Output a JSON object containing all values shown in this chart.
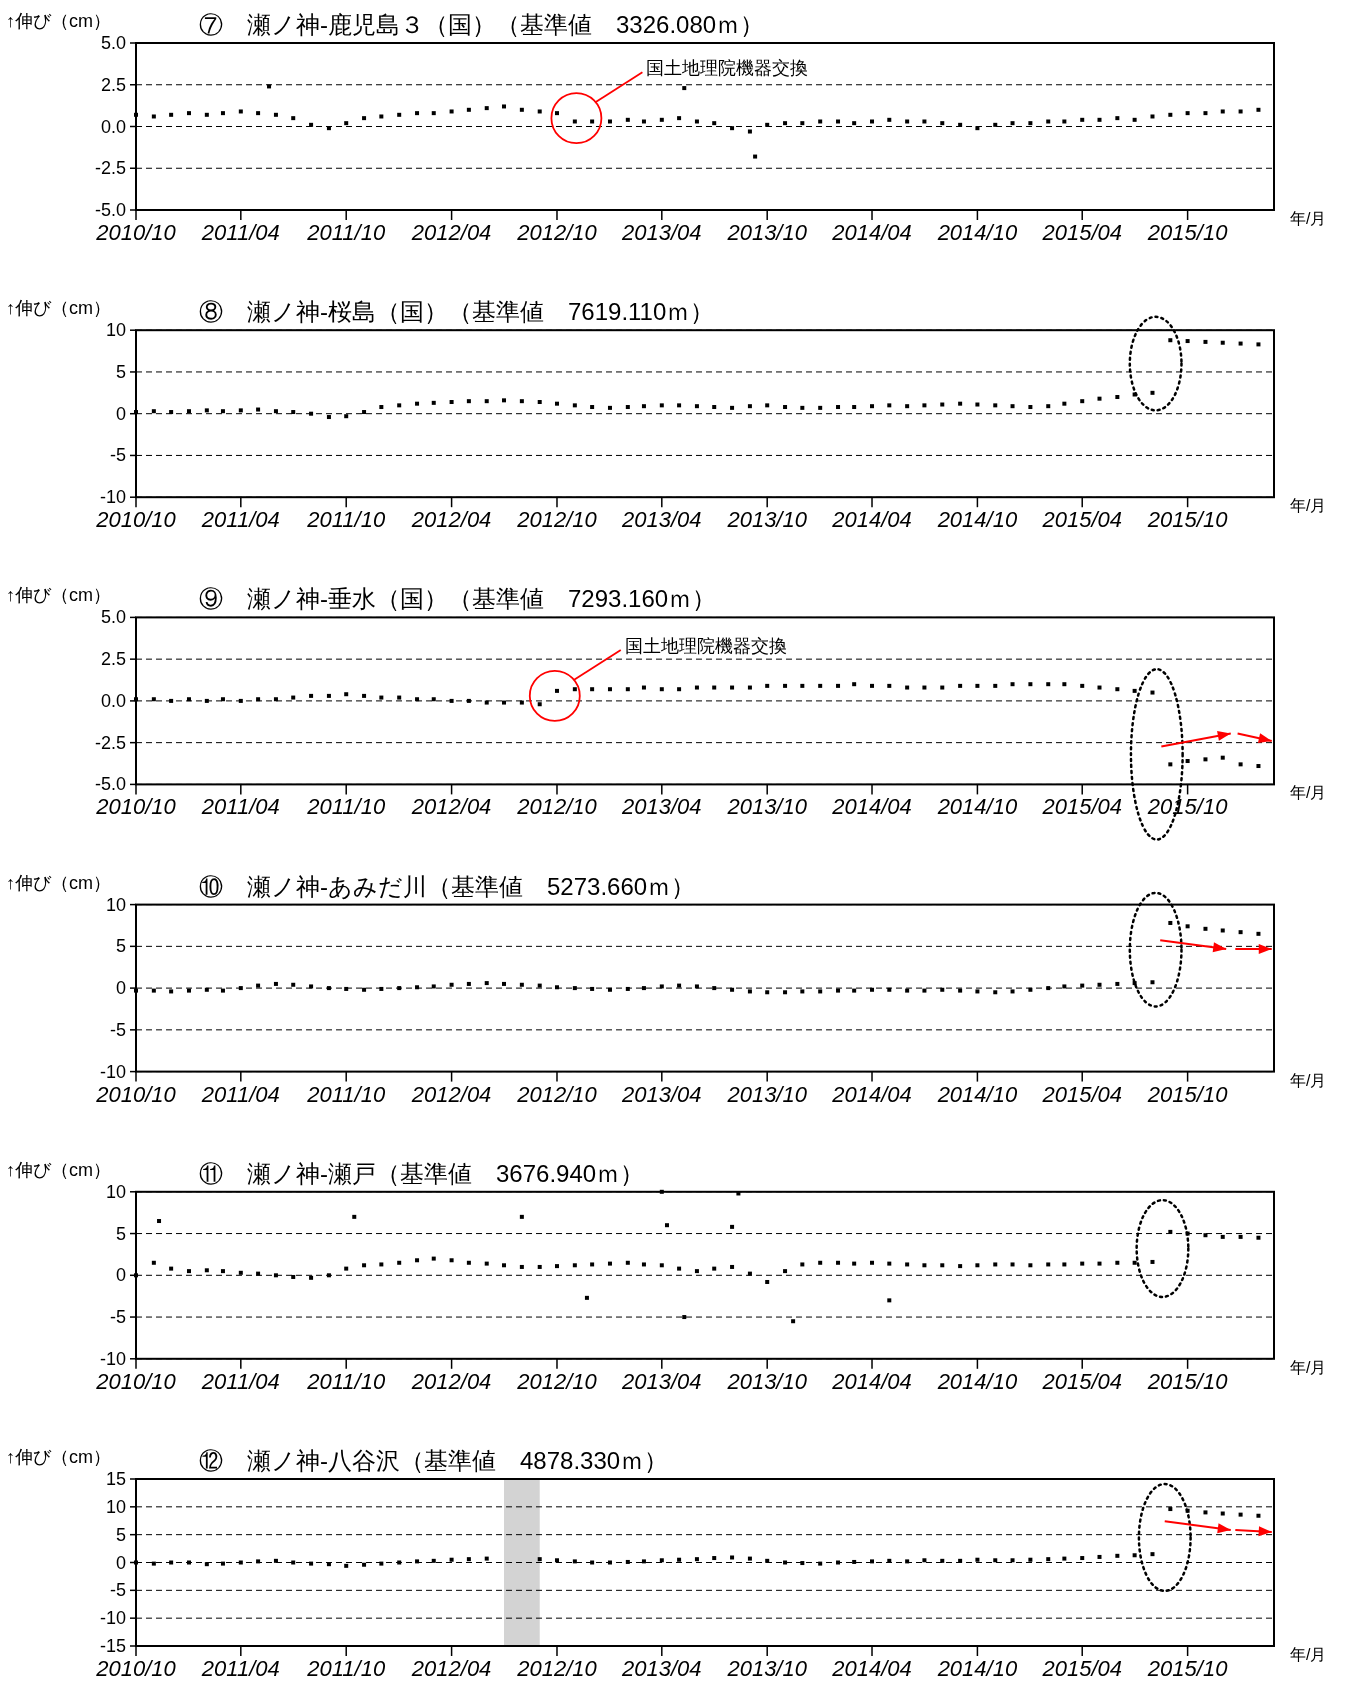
{
  "chart_data": [
    {
      "type": "scatter",
      "title": "⑦　瀬ノ神-鹿児島３（国）（基準値　3326.080ｍ）",
      "ylabel": "↑伸び（cm）",
      "xlabel": "年/月",
      "marker": "square",
      "grid": "y",
      "xlim": [
        "2010-10-01",
        "2016-02-28"
      ],
      "xticks": [
        {
          "value": "2010-10-01",
          "label": "2010/10"
        },
        {
          "value": "2011-04-01",
          "label": "2011/04"
        },
        {
          "value": "2011-10-01",
          "label": "2011/10"
        },
        {
          "value": "2012-04-01",
          "label": "2012/04"
        },
        {
          "value": "2012-10-01",
          "label": "2012/10"
        },
        {
          "value": "2013-04-01",
          "label": "2013/04"
        },
        {
          "value": "2013-10-01",
          "label": "2013/10"
        },
        {
          "value": "2014-04-01",
          "label": "2014/04"
        },
        {
          "value": "2014-10-01",
          "label": "2014/10"
        },
        {
          "value": "2015-04-01",
          "label": "2015/04"
        },
        {
          "value": "2015-10-01",
          "label": "2015/10"
        }
      ],
      "ylim": [
        -5,
        5
      ],
      "yticks": [
        {
          "value": 5,
          "label": "5.0"
        },
        {
          "value": 2.5,
          "label": "2.5"
        },
        {
          "value": 0,
          "label": "0.0"
        },
        {
          "value": -2.5,
          "label": "-2.5"
        },
        {
          "value": -5,
          "label": "-5.0"
        }
      ],
      "annotations": [
        "国土地理院機器交換"
      ],
      "series": [
        {
          "color": "#000000",
          "x": [
            "2010-10",
            "2010-11",
            "2010-12",
            "2011-01",
            "2011-02",
            "2011-03",
            "2011-04",
            "2011-05",
            "2011-06",
            "2011-07",
            "2011-08",
            "2011-09",
            "2011-10",
            "2011-11",
            "2011-12",
            "2012-01",
            "2012-02",
            "2012-03",
            "2012-04",
            "2012-05",
            "2012-06",
            "2012-07",
            "2012-08",
            "2012-09",
            "2012-10",
            "2012-11",
            "2012-12",
            "2013-01",
            "2013-02",
            "2013-03",
            "2013-04",
            "2013-05",
            "2013-06",
            "2013-07",
            "2013-08",
            "2013-09",
            "2013-10",
            "2013-11",
            "2013-12",
            "2014-01",
            "2014-02",
            "2014-03",
            "2014-04",
            "2014-05",
            "2014-06",
            "2014-07",
            "2014-08",
            "2014-09",
            "2014-10",
            "2014-11",
            "2014-12",
            "2015-01",
            "2015-02",
            "2015-03",
            "2015-04",
            "2015-05",
            "2015-06",
            "2015-07",
            "2015-08",
            "2015-09",
            "2015-10",
            "2015-11",
            "2015-12",
            "2016-01",
            "2016-02",
            "2011-05-20",
            "2013-05-10",
            "2013-09-10"
          ],
          "values": [
            0.7,
            0.6,
            0.7,
            0.8,
            0.7,
            0.8,
            0.9,
            0.8,
            0.7,
            0.5,
            0.1,
            -0.1,
            0.2,
            0.5,
            0.6,
            0.7,
            0.8,
            0.8,
            0.9,
            1.0,
            1.1,
            1.2,
            1.0,
            0.9,
            0.8,
            0.3,
            0.3,
            0.3,
            0.4,
            0.3,
            0.4,
            0.5,
            0.3,
            0.2,
            -0.1,
            -0.3,
            0.1,
            0.2,
            0.2,
            0.3,
            0.3,
            0.2,
            0.3,
            0.4,
            0.3,
            0.3,
            0.2,
            0.1,
            -0.1,
            0.1,
            0.2,
            0.2,
            0.3,
            0.3,
            0.4,
            0.4,
            0.5,
            0.4,
            0.6,
            0.7,
            0.8,
            0.8,
            0.9,
            0.9,
            1.0,
            2.4,
            2.3,
            -1.8
          ]
        }
      ]
    },
    {
      "type": "scatter",
      "title": "⑧　瀬ノ神-桜島（国）（基準値　7619.110ｍ）",
      "ylabel": "↑伸び（cm）",
      "xlabel": "年/月",
      "marker": "square",
      "grid": "y",
      "xlim": [
        "2010-10-01",
        "2016-02-28"
      ],
      "xticks": [
        {
          "value": "2010-10-01",
          "label": "2010/10"
        },
        {
          "value": "2011-04-01",
          "label": "2011/04"
        },
        {
          "value": "2011-10-01",
          "label": "2011/10"
        },
        {
          "value": "2012-04-01",
          "label": "2012/04"
        },
        {
          "value": "2012-10-01",
          "label": "2012/10"
        },
        {
          "value": "2013-04-01",
          "label": "2013/04"
        },
        {
          "value": "2013-10-01",
          "label": "2013/10"
        },
        {
          "value": "2014-04-01",
          "label": "2014/04"
        },
        {
          "value": "2014-10-01",
          "label": "2014/10"
        },
        {
          "value": "2015-04-01",
          "label": "2015/04"
        },
        {
          "value": "2015-10-01",
          "label": "2015/10"
        }
      ],
      "ylim": [
        -10,
        10
      ],
      "yticks": [
        10,
        5,
        0,
        -5,
        -10
      ],
      "series": [
        {
          "color": "#000000",
          "x": [
            "2010-10",
            "2010-11",
            "2010-12",
            "2011-01",
            "2011-02",
            "2011-03",
            "2011-04",
            "2011-05",
            "2011-06",
            "2011-07",
            "2011-08",
            "2011-09",
            "2011-10",
            "2011-11",
            "2011-12",
            "2012-01",
            "2012-02",
            "2012-03",
            "2012-04",
            "2012-05",
            "2012-06",
            "2012-07",
            "2012-08",
            "2012-09",
            "2012-10",
            "2012-11",
            "2012-12",
            "2013-01",
            "2013-02",
            "2013-03",
            "2013-04",
            "2013-05",
            "2013-06",
            "2013-07",
            "2013-08",
            "2013-09",
            "2013-10",
            "2013-11",
            "2013-12",
            "2014-01",
            "2014-02",
            "2014-03",
            "2014-04",
            "2014-05",
            "2014-06",
            "2014-07",
            "2014-08",
            "2014-09",
            "2014-10",
            "2014-11",
            "2014-12",
            "2015-01",
            "2015-02",
            "2015-03",
            "2015-04",
            "2015-05",
            "2015-06",
            "2015-07",
            "2015-08",
            "2015-09",
            "2015-10",
            "2015-11",
            "2015-12",
            "2016-01",
            "2016-02"
          ],
          "values": [
            0.2,
            0.3,
            0.2,
            0.3,
            0.4,
            0.3,
            0.4,
            0.5,
            0.3,
            0.2,
            0.0,
            -0.4,
            -0.3,
            0.2,
            0.8,
            1.0,
            1.2,
            1.3,
            1.4,
            1.5,
            1.5,
            1.6,
            1.5,
            1.4,
            1.2,
            1.0,
            0.8,
            0.7,
            0.8,
            0.9,
            1.0,
            1.0,
            0.9,
            0.8,
            0.7,
            0.9,
            1.0,
            0.8,
            0.7,
            0.7,
            0.8,
            0.8,
            0.9,
            1.0,
            0.9,
            1.0,
            1.1,
            1.2,
            1.1,
            1.0,
            0.9,
            0.8,
            0.9,
            1.2,
            1.5,
            1.8,
            2.0,
            2.3,
            2.5,
            8.8,
            8.7,
            8.6,
            8.5,
            8.4,
            8.3
          ]
        }
      ]
    },
    {
      "type": "scatter",
      "title": "⑨　瀬ノ神-垂水（国）（基準値　7293.160ｍ）",
      "ylabel": "↑伸び（cm）",
      "xlabel": "年/月",
      "marker": "square",
      "grid": "y",
      "xlim": [
        "2010-10-01",
        "2016-02-28"
      ],
      "xticks": [
        {
          "value": "2010-10-01",
          "label": "2010/10"
        },
        {
          "value": "2011-04-01",
          "label": "2011/04"
        },
        {
          "value": "2011-10-01",
          "label": "2011/10"
        },
        {
          "value": "2012-04-01",
          "label": "2012/04"
        },
        {
          "value": "2012-10-01",
          "label": "2012/10"
        },
        {
          "value": "2013-04-01",
          "label": "2013/04"
        },
        {
          "value": "2013-10-01",
          "label": "2013/10"
        },
        {
          "value": "2014-04-01",
          "label": "2014/04"
        },
        {
          "value": "2014-10-01",
          "label": "2014/10"
        },
        {
          "value": "2015-04-01",
          "label": "2015/04"
        },
        {
          "value": "2015-10-01",
          "label": "2015/10"
        }
      ],
      "ylim": [
        -5,
        5
      ],
      "yticks": [
        {
          "value": 5,
          "label": "5.0"
        },
        {
          "value": 2.5,
          "label": "2.5"
        },
        {
          "value": 0,
          "label": "0.0"
        },
        {
          "value": -2.5,
          "label": "-2.5"
        },
        {
          "value": -5,
          "label": "-5.0"
        }
      ],
      "annotations": [
        "国土地理院機器交換"
      ],
      "series": [
        {
          "color": "#000000",
          "x": [
            "2010-10",
            "2010-11",
            "2010-12",
            "2011-01",
            "2011-02",
            "2011-03",
            "2011-04",
            "2011-05",
            "2011-06",
            "2011-07",
            "2011-08",
            "2011-09",
            "2011-10",
            "2011-11",
            "2011-12",
            "2012-01",
            "2012-02",
            "2012-03",
            "2012-04",
            "2012-05",
            "2012-06",
            "2012-07",
            "2012-08",
            "2012-09",
            "2012-10",
            "2012-11",
            "2012-12",
            "2013-01",
            "2013-02",
            "2013-03",
            "2013-04",
            "2013-05",
            "2013-06",
            "2013-07",
            "2013-08",
            "2013-09",
            "2013-10",
            "2013-11",
            "2013-12",
            "2014-01",
            "2014-02",
            "2014-03",
            "2014-04",
            "2014-05",
            "2014-06",
            "2014-07",
            "2014-08",
            "2014-09",
            "2014-10",
            "2014-11",
            "2014-12",
            "2015-01",
            "2015-02",
            "2015-03",
            "2015-04",
            "2015-05",
            "2015-06",
            "2015-07",
            "2015-08",
            "2015-09",
            "2015-10",
            "2015-11",
            "2015-12",
            "2016-01",
            "2016-02"
          ],
          "values": [
            0.1,
            0.1,
            0.0,
            0.1,
            0.0,
            0.1,
            0.0,
            0.1,
            0.1,
            0.2,
            0.3,
            0.3,
            0.4,
            0.3,
            0.2,
            0.2,
            0.1,
            0.1,
            0.0,
            0.0,
            -0.1,
            -0.1,
            -0.1,
            -0.2,
            0.6,
            0.7,
            0.7,
            0.7,
            0.7,
            0.8,
            0.7,
            0.7,
            0.8,
            0.8,
            0.8,
            0.8,
            0.9,
            0.9,
            0.9,
            0.9,
            0.9,
            1.0,
            0.9,
            0.9,
            0.8,
            0.8,
            0.8,
            0.9,
            0.9,
            0.9,
            1.0,
            1.0,
            1.0,
            1.0,
            0.9,
            0.8,
            0.7,
            0.6,
            0.5,
            -3.8,
            -3.6,
            -3.5,
            -3.4,
            -3.8,
            -3.9
          ]
        }
      ]
    },
    {
      "type": "scatter",
      "title": "⑩　瀬ノ神-あみだ川（基準値　5273.660ｍ）",
      "ylabel": "↑伸び（cm）",
      "xlabel": "年/月",
      "marker": "square",
      "grid": "y",
      "xlim": [
        "2010-10-01",
        "2016-02-28"
      ],
      "xticks": [
        {
          "value": "2010-10-01",
          "label": "2010/10"
        },
        {
          "value": "2011-04-01",
          "label": "2011/04"
        },
        {
          "value": "2011-10-01",
          "label": "2011/10"
        },
        {
          "value": "2012-04-01",
          "label": "2012/04"
        },
        {
          "value": "2012-10-01",
          "label": "2012/10"
        },
        {
          "value": "2013-04-01",
          "label": "2013/04"
        },
        {
          "value": "2013-10-01",
          "label": "2013/10"
        },
        {
          "value": "2014-04-01",
          "label": "2014/04"
        },
        {
          "value": "2014-10-01",
          "label": "2014/10"
        },
        {
          "value": "2015-04-01",
          "label": "2015/04"
        },
        {
          "value": "2015-10-01",
          "label": "2015/10"
        }
      ],
      "ylim": [
        -10,
        10
      ],
      "yticks": [
        10,
        5,
        0,
        -5,
        -10
      ],
      "series": [
        {
          "color": "#000000",
          "x": [
            "2010-10",
            "2010-11",
            "2010-12",
            "2011-01",
            "2011-02",
            "2011-03",
            "2011-04",
            "2011-05",
            "2011-06",
            "2011-07",
            "2011-08",
            "2011-09",
            "2011-10",
            "2011-11",
            "2011-12",
            "2012-01",
            "2012-02",
            "2012-03",
            "2012-04",
            "2012-05",
            "2012-06",
            "2012-07",
            "2012-08",
            "2012-09",
            "2012-10",
            "2012-11",
            "2012-12",
            "2013-01",
            "2013-02",
            "2013-03",
            "2013-04",
            "2013-05",
            "2013-06",
            "2013-07",
            "2013-08",
            "2013-09",
            "2013-10",
            "2013-11",
            "2013-12",
            "2014-01",
            "2014-02",
            "2014-03",
            "2014-04",
            "2014-05",
            "2014-06",
            "2014-07",
            "2014-08",
            "2014-09",
            "2014-10",
            "2014-11",
            "2014-12",
            "2015-01",
            "2015-02",
            "2015-03",
            "2015-04",
            "2015-05",
            "2015-06",
            "2015-07",
            "2015-08",
            "2015-09",
            "2015-10",
            "2015-11",
            "2015-12",
            "2016-01",
            "2016-02"
          ],
          "values": [
            -0.3,
            -0.3,
            -0.4,
            -0.3,
            -0.2,
            -0.3,
            0.0,
            0.3,
            0.5,
            0.4,
            0.2,
            0.0,
            -0.1,
            -0.2,
            -0.1,
            0.0,
            0.1,
            0.2,
            0.4,
            0.5,
            0.6,
            0.5,
            0.4,
            0.3,
            0.1,
            0.0,
            -0.1,
            -0.2,
            -0.1,
            0.0,
            0.2,
            0.3,
            0.2,
            0.0,
            -0.2,
            -0.4,
            -0.5,
            -0.5,
            -0.4,
            -0.4,
            -0.3,
            -0.3,
            -0.2,
            -0.2,
            -0.3,
            -0.3,
            -0.2,
            -0.3,
            -0.4,
            -0.5,
            -0.4,
            -0.2,
            0.0,
            0.2,
            0.3,
            0.4,
            0.5,
            0.6,
            0.7,
            7.8,
            7.4,
            7.1,
            6.9,
            6.7,
            6.5
          ]
        }
      ]
    },
    {
      "type": "scatter",
      "title": "⑪　瀬ノ神-瀬戸（基準値　3676.940ｍ）",
      "ylabel": "↑伸び（cm）",
      "xlabel": "年/月",
      "marker": "square",
      "grid": "y",
      "xlim": [
        "2010-10-01",
        "2016-02-28"
      ],
      "xticks": [
        {
          "value": "2010-10-01",
          "label": "2010/10"
        },
        {
          "value": "2011-04-01",
          "label": "2011/04"
        },
        {
          "value": "2011-10-01",
          "label": "2011/10"
        },
        {
          "value": "2012-04-01",
          "label": "2012/04"
        },
        {
          "value": "2012-10-01",
          "label": "2012/10"
        },
        {
          "value": "2013-04-01",
          "label": "2013/04"
        },
        {
          "value": "2013-10-01",
          "label": "2013/10"
        },
        {
          "value": "2014-04-01",
          "label": "2014/04"
        },
        {
          "value": "2014-10-01",
          "label": "2014/10"
        },
        {
          "value": "2015-04-01",
          "label": "2015/04"
        },
        {
          "value": "2015-10-01",
          "label": "2015/10"
        }
      ],
      "ylim": [
        -10,
        10
      ],
      "yticks": [
        10,
        5,
        0,
        -5,
        -10
      ],
      "series": [
        {
          "color": "#000000",
          "x": [
            "2010-10",
            "2010-11",
            "2010-12",
            "2011-01",
            "2011-02",
            "2011-03",
            "2011-04",
            "2011-05",
            "2011-06",
            "2011-07",
            "2011-08",
            "2011-09",
            "2011-10",
            "2011-11",
            "2011-12",
            "2012-01",
            "2012-02",
            "2012-03",
            "2012-04",
            "2012-05",
            "2012-06",
            "2012-07",
            "2012-08",
            "2012-09",
            "2012-10",
            "2012-11",
            "2012-12",
            "2013-01",
            "2013-02",
            "2013-03",
            "2013-04",
            "2013-05",
            "2013-06",
            "2013-07",
            "2013-08",
            "2013-09",
            "2013-10",
            "2013-11",
            "2013-12",
            "2014-01",
            "2014-02",
            "2014-03",
            "2014-04",
            "2014-05",
            "2014-06",
            "2014-07",
            "2014-08",
            "2014-09",
            "2014-10",
            "2014-11",
            "2014-12",
            "2015-01",
            "2015-02",
            "2015-03",
            "2015-04",
            "2015-05",
            "2015-06",
            "2015-07",
            "2015-08",
            "2015-09",
            "2015-10",
            "2015-11",
            "2015-12",
            "2016-01",
            "2016-02",
            "2010-11-10",
            "2011-10-15",
            "2012-08-01",
            "2013-04-01",
            "2013-04-10",
            "2013-05-10",
            "2013-08-12",
            "2013-08-01",
            "2013-11-15",
            "2014-05-01",
            "2012-11-22"
          ],
          "values": [
            0.0,
            1.5,
            0.8,
            0.5,
            0.6,
            0.5,
            0.3,
            0.2,
            0.0,
            -0.2,
            -0.3,
            0.0,
            0.8,
            1.2,
            1.3,
            1.5,
            1.8,
            2.0,
            1.8,
            1.5,
            1.4,
            1.2,
            1.0,
            1.0,
            1.1,
            1.2,
            1.3,
            1.4,
            1.5,
            1.3,
            1.2,
            0.8,
            0.5,
            0.8,
            1.0,
            0.2,
            -0.8,
            0.5,
            1.3,
            1.5,
            1.5,
            1.4,
            1.5,
            1.4,
            1.3,
            1.2,
            1.2,
            1.1,
            1.2,
            1.3,
            1.3,
            1.2,
            1.3,
            1.3,
            1.4,
            1.4,
            1.5,
            1.5,
            1.6,
            5.2,
            5.0,
            4.8,
            4.6,
            4.6,
            4.5,
            6.5,
            7.0,
            7.0,
            10.0,
            6.0,
            -5.0,
            9.8,
            5.8,
            -5.5,
            -3.0,
            -2.7
          ]
        }
      ]
    },
    {
      "type": "scatter",
      "title": "⑫　瀬ノ神-八谷沢（基準値　4878.330ｍ）",
      "ylabel": "↑伸び（cm）",
      "xlabel": "年/月",
      "marker": "square",
      "grid": "y",
      "xlim": [
        "2010-10-01",
        "2016-02-28"
      ],
      "xticks": [
        {
          "value": "2010-10-01",
          "label": "2010/10"
        },
        {
          "value": "2011-04-01",
          "label": "2011/04"
        },
        {
          "value": "2011-10-01",
          "label": "2011/10"
        },
        {
          "value": "2012-04-01",
          "label": "2012/04"
        },
        {
          "value": "2012-10-01",
          "label": "2012/10"
        },
        {
          "value": "2013-04-01",
          "label": "2013/04"
        },
        {
          "value": "2013-10-01",
          "label": "2013/10"
        },
        {
          "value": "2014-04-01",
          "label": "2014/04"
        },
        {
          "value": "2014-10-01",
          "label": "2014/10"
        },
        {
          "value": "2015-04-01",
          "label": "2015/04"
        },
        {
          "value": "2015-10-01",
          "label": "2015/10"
        }
      ],
      "ylim": [
        -15,
        15
      ],
      "yticks": [
        15,
        10,
        5,
        0,
        -5,
        -10,
        -15
      ],
      "bands": [
        {
          "axis": "x",
          "from": "2012-07-01",
          "to": "2012-09-01",
          "color": "#d3d3d3"
        }
      ],
      "series": [
        {
          "color": "#000000",
          "x": [
            "2010-10",
            "2010-11",
            "2010-12",
            "2011-01",
            "2011-02",
            "2011-03",
            "2011-04",
            "2011-05",
            "2011-06",
            "2011-07",
            "2011-08",
            "2011-09",
            "2011-10",
            "2011-11",
            "2011-12",
            "2012-01",
            "2012-02",
            "2012-03",
            "2012-04",
            "2012-05",
            "2012-06",
            "2012-07",
            "2012-08",
            "2012-09",
            "2012-10",
            "2012-11",
            "2012-12",
            "2013-01",
            "2013-02",
            "2013-03",
            "2013-04",
            "2013-05",
            "2013-06",
            "2013-07",
            "2013-08",
            "2013-09",
            "2013-10",
            "2013-11",
            "2013-12",
            "2014-01",
            "2014-02",
            "2014-03",
            "2014-04",
            "2014-05",
            "2014-06",
            "2014-07",
            "2014-08",
            "2014-09",
            "2014-10",
            "2014-11",
            "2014-12",
            "2015-01",
            "2015-02",
            "2015-03",
            "2015-04",
            "2015-05",
            "2015-06",
            "2015-07",
            "2015-08",
            "2015-09",
            "2015-10",
            "2015-11",
            "2015-12",
            "2016-01",
            "2016-02"
          ],
          "values": [
            0.0,
            -0.2,
            0.0,
            0.0,
            -0.3,
            -0.2,
            0.0,
            0.2,
            0.3,
            0.0,
            -0.2,
            -0.3,
            -0.6,
            -0.4,
            -0.2,
            0.0,
            0.2,
            0.3,
            0.5,
            0.6,
            0.7,
            null,
            null,
            0.6,
            0.4,
            0.2,
            0.0,
            0.0,
            0.1,
            0.2,
            0.4,
            0.5,
            0.6,
            0.8,
            0.9,
            0.7,
            0.3,
            0.0,
            -0.1,
            -0.2,
            0.0,
            0.1,
            0.2,
            0.3,
            0.2,
            0.4,
            0.3,
            0.3,
            0.5,
            0.4,
            0.4,
            0.5,
            0.6,
            0.7,
            0.8,
            1.0,
            1.2,
            1.3,
            1.5,
            9.6,
            9.3,
            9.0,
            8.8,
            8.6,
            8.4
          ]
        }
      ]
    }
  ]
}
